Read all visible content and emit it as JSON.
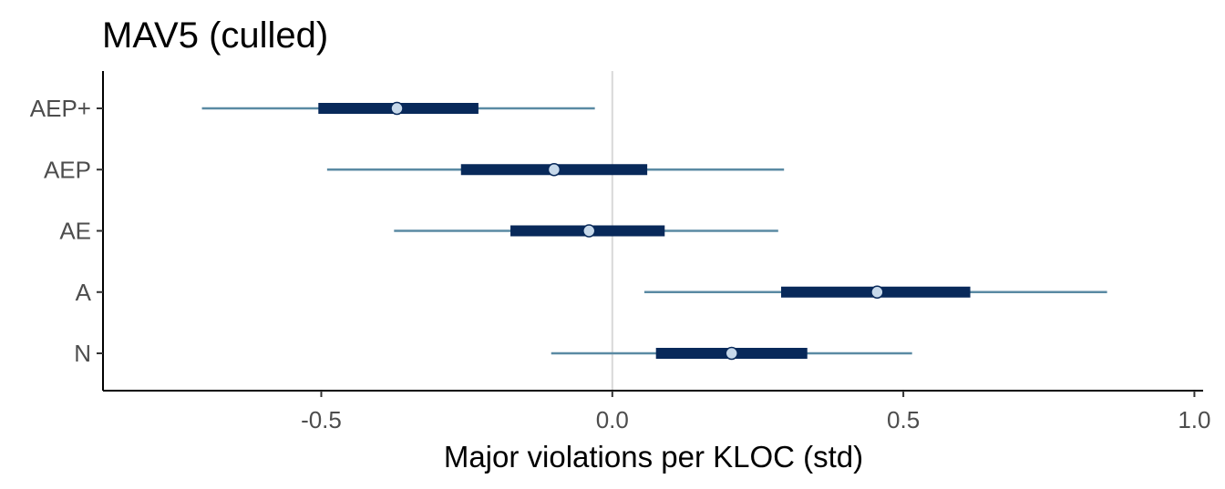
{
  "chart_data": {
    "type": "interval",
    "title": "MAV5 (culled)",
    "xlabel": "Major violations per KLOC (std)",
    "ylabel": "",
    "xlim": [
      -0.875,
      1.015
    ],
    "x_ticks": [
      "-0.5",
      "0.0",
      "0.5",
      "1.0"
    ],
    "x_tick_values": [
      -0.5,
      0.0,
      0.5,
      1.0
    ],
    "reference_line": 0.0,
    "grid": false,
    "legend": "none",
    "categories": [
      "AEP+",
      "AEP",
      "AE",
      "A",
      "N"
    ],
    "series": [
      {
        "point": [
          -0.37,
          -0.1,
          -0.04,
          0.455,
          0.205
        ],
        "inner_low": [
          -0.505,
          -0.26,
          -0.175,
          0.29,
          0.075
        ],
        "inner_high": [
          -0.23,
          0.06,
          0.09,
          0.615,
          0.335
        ],
        "outer_low": [
          -0.705,
          -0.49,
          -0.375,
          0.055,
          -0.105
        ],
        "outer_high": [
          -0.03,
          0.295,
          0.285,
          0.85,
          0.515
        ]
      }
    ],
    "colors": {
      "outer_interval": "#5a8aa3",
      "inner_interval": "#08295a",
      "point_fill": "#c6d8ea",
      "point_stroke": "#08295a",
      "reference_line": "#d9d9d9",
      "axis": "#000000"
    }
  }
}
